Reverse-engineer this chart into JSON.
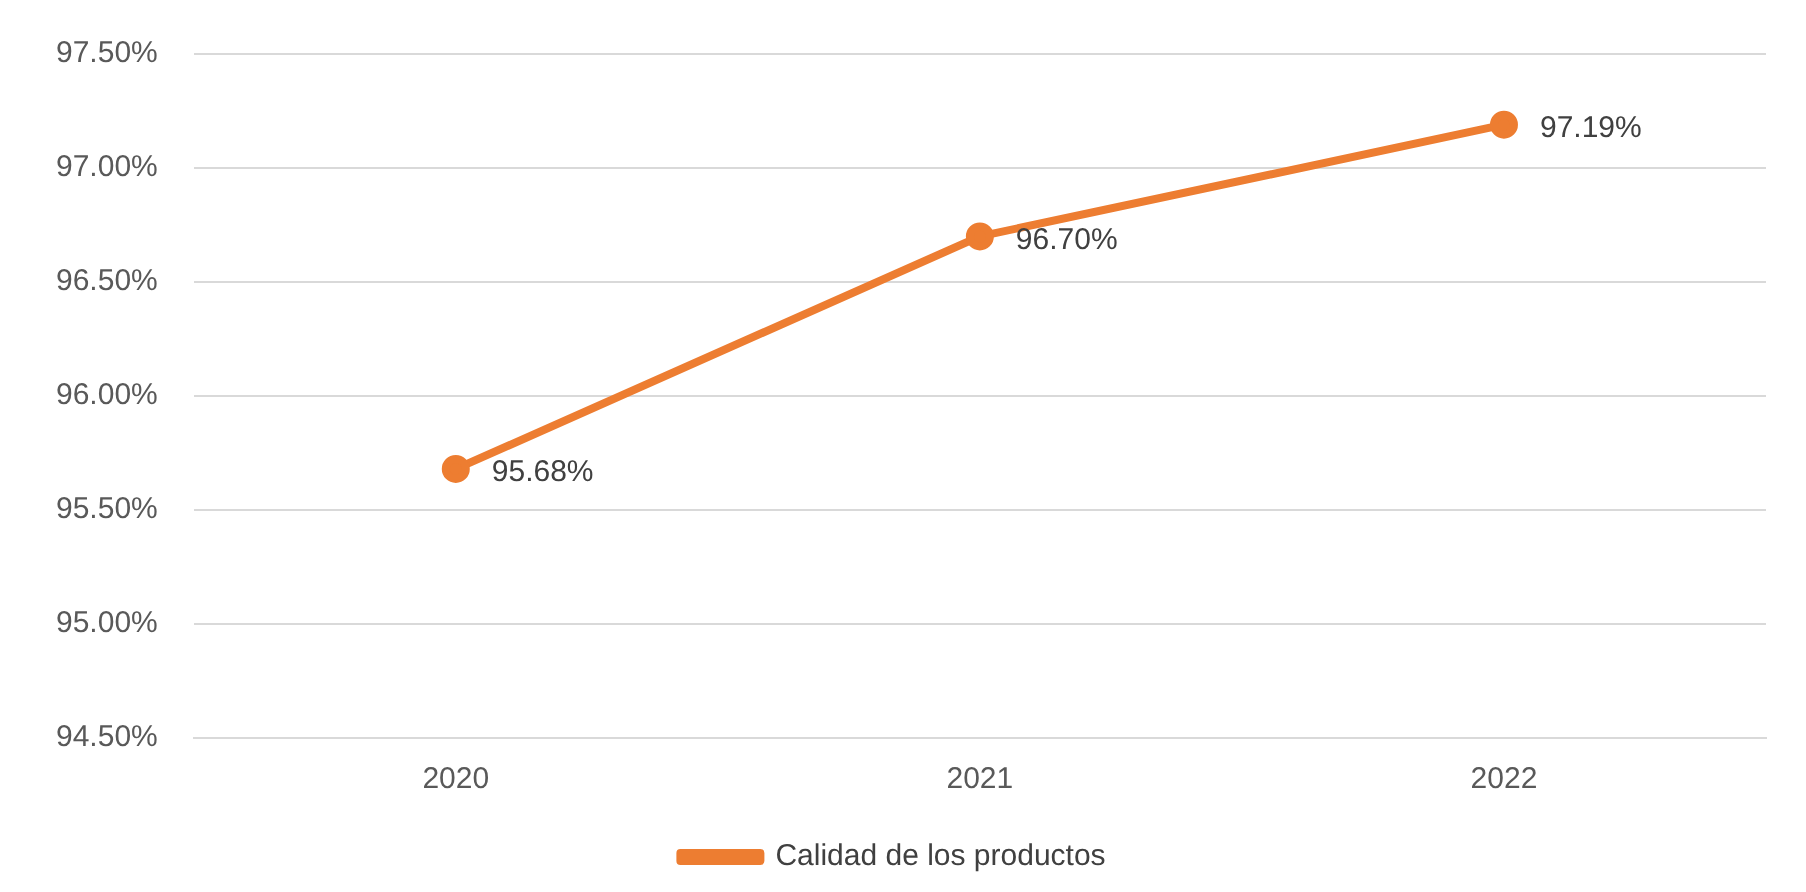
{
  "chart_data": {
    "type": "line",
    "categories": [
      "2020",
      "2021",
      "2022"
    ],
    "series": [
      {
        "name": "Calidad de los productos",
        "color": "#ed7d31",
        "values": [
          95.68,
          96.7,
          97.19
        ],
        "value_labels": [
          "95.68%",
          "96.70%",
          "97.19%"
        ]
      }
    ],
    "ylim": [
      94.5,
      97.5
    ],
    "yticks": [
      {
        "value": 94.5,
        "label": "94.50%"
      },
      {
        "value": 95,
        "label": "95.00%"
      },
      {
        "value": 95.5,
        "label": "95.50%"
      },
      {
        "value": 96,
        "label": "96.00%"
      },
      {
        "value": 96.5,
        "label": "96.50%"
      },
      {
        "value": 97,
        "label": "97.00%"
      },
      {
        "value": 97.5,
        "label": "97.50%"
      }
    ],
    "grid": "y",
    "legend": "bottom",
    "marker": "circle",
    "line_style": "solid"
  }
}
